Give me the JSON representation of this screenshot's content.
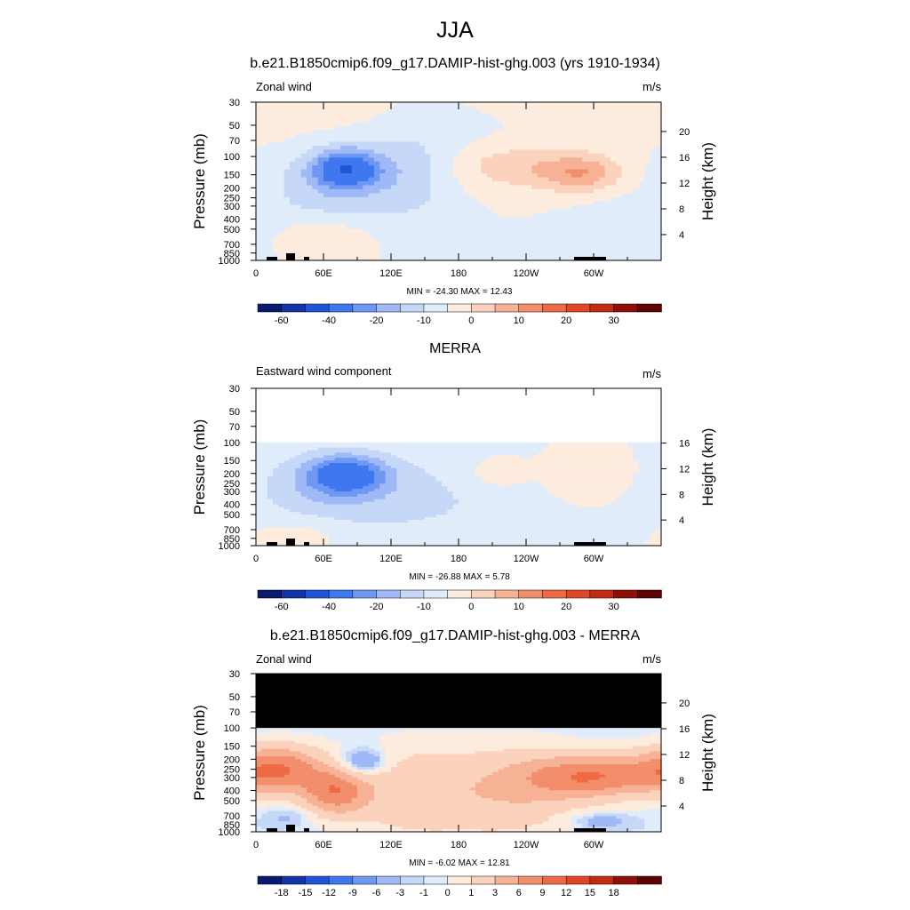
{
  "main_title": "JJA",
  "palettes": {
    "abs": [
      "#0a1a6e",
      "#1234a8",
      "#1f55d6",
      "#3f78ee",
      "#6f98f4",
      "#9fb8f6",
      "#c6d8f8",
      "#e1ecfb",
      "#fdebdd",
      "#fbd3bd",
      "#f7b296",
      "#f38e6d",
      "#ee6a44",
      "#e04726",
      "#c22a12",
      "#8e0f07",
      "#5e0303"
    ],
    "diff": [
      "#0a1a6e",
      "#1234a8",
      "#1f55d6",
      "#3f78ee",
      "#6f98f4",
      "#9fb8f6",
      "#c6d8f8",
      "#e1ecfb",
      "#fdebdd",
      "#fbd3bd",
      "#f7b296",
      "#f38e6d",
      "#ee6a44",
      "#e04726",
      "#c22a12",
      "#8e0f07",
      "#5e0303"
    ]
  },
  "chart_data": [
    {
      "type": "heatmap",
      "title": "b.e21.B1850cmip6.f09_g17.DAMIP-hist-ghg.003 (yrs 1910-1934)",
      "left_label": "Zonal wind",
      "units": "m/s",
      "ylabel": "Pressure (mb)",
      "ylabel_right": "Height (km)",
      "x_ticks": [
        "0",
        "60E",
        "120E",
        "180",
        "120W",
        "60W"
      ],
      "y_ticks": [
        "30",
        "50",
        "70",
        "100",
        "150",
        "200",
        "250",
        "300",
        "400",
        "500",
        "700",
        "850",
        "1000"
      ],
      "right_ticks": [
        "20",
        "16",
        "12",
        "8",
        "4"
      ],
      "min": -24.3,
      "max": 12.43,
      "minmax_text": "MIN = -24.30  MAX =  12.43",
      "colorbar_labels": [
        "-60",
        "-40",
        "-20",
        "-10",
        "0",
        "10",
        "20",
        "30"
      ],
      "palette": "abs",
      "data_top_pressure": 30,
      "masked_above": null
    },
    {
      "type": "heatmap",
      "title": "MERRA",
      "left_label": "Eastward wind component",
      "units": "m/s",
      "ylabel": "Pressure (mb)",
      "ylabel_right": "Height (km)",
      "x_ticks": [
        "0",
        "60E",
        "120E",
        "180",
        "120W",
        "60W"
      ],
      "y_ticks": [
        "30",
        "50",
        "70",
        "100",
        "150",
        "200",
        "250",
        "300",
        "400",
        "500",
        "700",
        "850",
        "1000"
      ],
      "right_ticks": [
        "16",
        "12",
        "8",
        "4"
      ],
      "min": -26.88,
      "max": 5.78,
      "minmax_text": "MIN = -26.88  MAX =   5.78",
      "colorbar_labels": [
        "-60",
        "-40",
        "-20",
        "-10",
        "0",
        "10",
        "20",
        "30"
      ],
      "palette": "abs",
      "data_top_pressure": 100,
      "masked_above": null
    },
    {
      "type": "heatmap",
      "title": "b.e21.B1850cmip6.f09_g17.DAMIP-hist-ghg.003 - MERRA",
      "left_label": "Zonal wind",
      "units": "m/s",
      "ylabel": "Pressure (mb)",
      "ylabel_right": "Height (km)",
      "x_ticks": [
        "0",
        "60E",
        "120E",
        "180",
        "120W",
        "60W"
      ],
      "y_ticks": [
        "30",
        "50",
        "70",
        "100",
        "150",
        "200",
        "250",
        "300",
        "400",
        "500",
        "700",
        "850",
        "1000"
      ],
      "right_ticks": [
        "20",
        "16",
        "12",
        "8",
        "4"
      ],
      "min": -6.02,
      "max": 12.81,
      "minmax_text": "MIN =  -6.02  MAX =  12.81",
      "colorbar_labels": [
        "-18",
        "-15",
        "-12",
        "-9",
        "-6",
        "-3",
        "-1",
        "0",
        "1",
        "3",
        "6",
        "9",
        "12",
        "15",
        "18"
      ],
      "palette": "diff",
      "data_top_pressure": 100,
      "masked_above": 100
    }
  ]
}
